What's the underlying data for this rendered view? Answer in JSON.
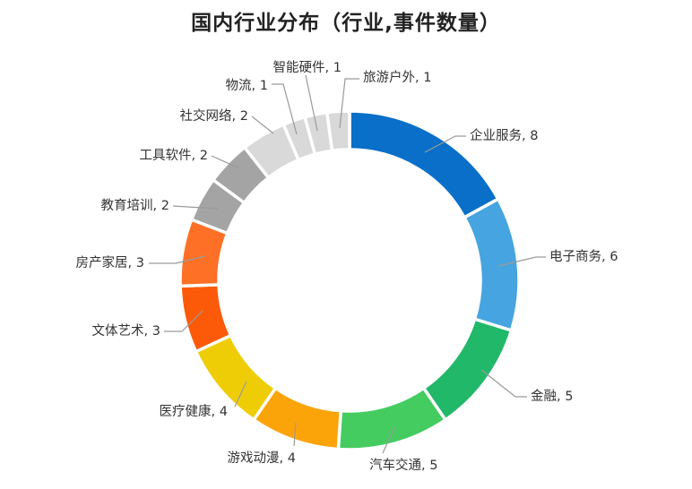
{
  "chart_data": {
    "type": "pie",
    "title": "国内行业分布（行业,事件数量）",
    "series": [
      {
        "label": "企业服务",
        "value": 8,
        "color": "#0A6FC8"
      },
      {
        "label": "电子商务",
        "value": 6,
        "color": "#46A5E0"
      },
      {
        "label": "金融",
        "value": 5,
        "color": "#22B86A"
      },
      {
        "label": "汽车交通",
        "value": 5,
        "color": "#45CC60"
      },
      {
        "label": "游戏动漫",
        "value": 4,
        "color": "#FBA40A"
      },
      {
        "label": "医疗健康",
        "value": 4,
        "color": "#EFCD06"
      },
      {
        "label": "文体艺术",
        "value": 3,
        "color": "#FC5A08"
      },
      {
        "label": "房产家居",
        "value": 3,
        "color": "#FD7026"
      },
      {
        "label": "教育培训",
        "value": 2,
        "color": "#A4A4A4"
      },
      {
        "label": "工具软件",
        "value": 2,
        "color": "#A4A4A4"
      },
      {
        "label": "社交网络",
        "value": 2,
        "color": "#D9D9D9"
      },
      {
        "label": "物流",
        "value": 1,
        "color": "#D9D9D9"
      },
      {
        "label": "智能硬件",
        "value": 1,
        "color": "#D9D9D9"
      },
      {
        "label": "旅游户外",
        "value": 1,
        "color": "#D9D9D9"
      }
    ],
    "data_labels": [
      "企业服务, 8",
      "电子商务, 6",
      "金融, 5",
      "汽车交通, 5",
      "游戏动漫, 4",
      "医疗健康, 4",
      "文体艺术, 3",
      "房产家居, 3",
      "教育培训, 2",
      "工具软件, 2",
      "社交网络, 2",
      "物流, 1",
      "智能硬件, 1",
      "旅游户外, 1"
    ],
    "legend": "none"
  }
}
